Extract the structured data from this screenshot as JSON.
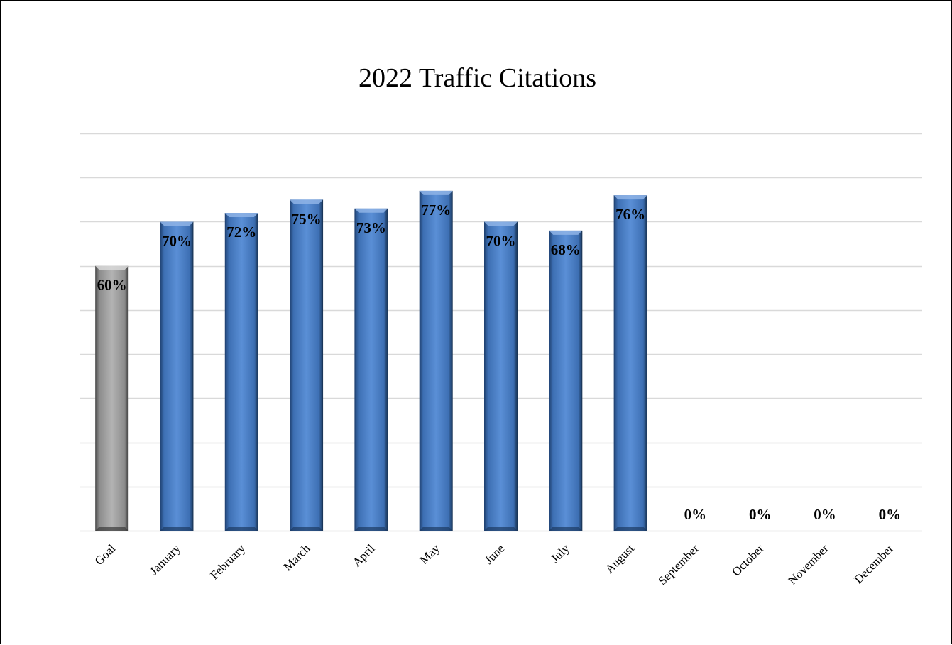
{
  "chart_data": {
    "type": "bar",
    "title": "2022 Traffic Citations",
    "xlabel": "",
    "ylabel": "",
    "ylim": [
      0,
      90
    ],
    "gridline_step": 10,
    "grid": true,
    "legend": "none",
    "categories": [
      "Goal",
      "January",
      "February",
      "March",
      "April",
      "May",
      "June",
      "July",
      "August",
      "September",
      "October",
      "November",
      "December"
    ],
    "values": [
      60,
      70,
      72,
      75,
      73,
      77,
      70,
      68,
      76,
      0,
      0,
      0,
      0
    ],
    "data_labels": [
      "60%",
      "70%",
      "72%",
      "75%",
      "73%",
      "77%",
      "70%",
      "68%",
      "76%",
      "0%",
      "0%",
      "0%",
      "0%"
    ],
    "colors": {
      "goal_bar": "#a6a6a6",
      "month_bar": "#4a7ec4",
      "gridline": "#d9d9d9"
    }
  }
}
